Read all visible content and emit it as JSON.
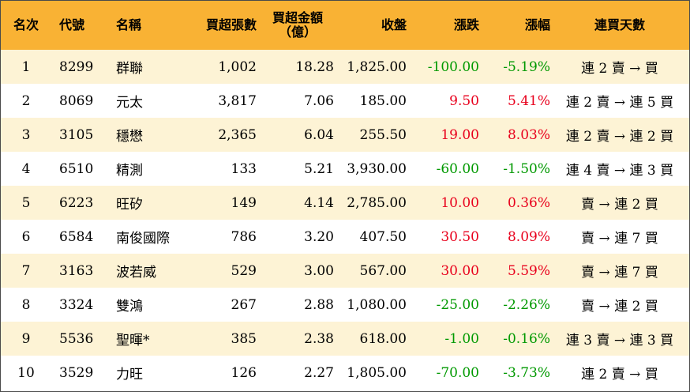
{
  "headers": {
    "rank": "名次",
    "code": "代號",
    "name": "名稱",
    "net_buy_lots": "買超張數",
    "net_buy_amount_line1": "買超金額",
    "net_buy_amount_line2": "（億）",
    "close": "收盤",
    "change": "漲跌",
    "change_pct": "漲幅",
    "consecutive_buy_days": "連買天數"
  },
  "rows": [
    {
      "rank": "1",
      "code": "8299",
      "name": "群聯",
      "lots": "1,002",
      "amount": "18.28",
      "close": "1,825.00",
      "change": "-100.00",
      "pct": "-5.19%",
      "trend": "連 2 賣 → 買",
      "direction": "down"
    },
    {
      "rank": "2",
      "code": "8069",
      "name": "元太",
      "lots": "3,817",
      "amount": "7.06",
      "close": "185.00",
      "change": "9.50",
      "pct": "5.41%",
      "trend": "連 2 賣 → 連 5 買",
      "direction": "up"
    },
    {
      "rank": "3",
      "code": "3105",
      "name": "穩懋",
      "lots": "2,365",
      "amount": "6.04",
      "close": "255.50",
      "change": "19.00",
      "pct": "8.03%",
      "trend": "連 2 賣 → 連 2 買",
      "direction": "up"
    },
    {
      "rank": "4",
      "code": "6510",
      "name": "精測",
      "lots": "133",
      "amount": "5.21",
      "close": "3,930.00",
      "change": "-60.00",
      "pct": "-1.50%",
      "trend": "連 4 賣 → 連 3 買",
      "direction": "down"
    },
    {
      "rank": "5",
      "code": "6223",
      "name": "旺矽",
      "lots": "149",
      "amount": "4.14",
      "close": "2,785.00",
      "change": "10.00",
      "pct": "0.36%",
      "trend": "賣 → 連 2 買",
      "direction": "up"
    },
    {
      "rank": "6",
      "code": "6584",
      "name": "南俊國際",
      "lots": "786",
      "amount": "3.20",
      "close": "407.50",
      "change": "30.50",
      "pct": "8.09%",
      "trend": "賣 → 連 7 買",
      "direction": "up"
    },
    {
      "rank": "7",
      "code": "3163",
      "name": "波若威",
      "lots": "529",
      "amount": "3.00",
      "close": "567.00",
      "change": "30.00",
      "pct": "5.59%",
      "trend": "賣 → 連 7 買",
      "direction": "up"
    },
    {
      "rank": "8",
      "code": "3324",
      "name": "雙鴻",
      "lots": "267",
      "amount": "2.88",
      "close": "1,080.00",
      "change": "-25.00",
      "pct": "-2.26%",
      "trend": "賣 → 連 2 買",
      "direction": "down"
    },
    {
      "rank": "9",
      "code": "5536",
      "name": "聖暉*",
      "lots": "385",
      "amount": "2.38",
      "close": "618.00",
      "change": "-1.00",
      "pct": "-0.16%",
      "trend": "連 3 賣 → 連 3 買",
      "direction": "down"
    },
    {
      "rank": "10",
      "code": "3529",
      "name": "力旺",
      "lots": "126",
      "amount": "2.27",
      "close": "1,805.00",
      "change": "-70.00",
      "pct": "-3.73%",
      "trend": "連 2 賣 → 買",
      "direction": "down"
    }
  ],
  "colors": {
    "header_bg": "#f9b234",
    "odd_row_bg": "#fdf3d5",
    "even_row_bg": "#ffffff",
    "up": "#e8001c",
    "down": "#009900"
  }
}
